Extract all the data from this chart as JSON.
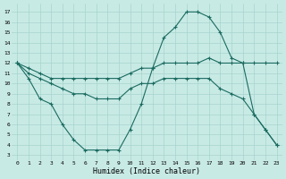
{
  "xlabel": "Humidex (Indice chaleur)",
  "xlim": [
    -0.5,
    23.5
  ],
  "ylim": [
    2.5,
    17.8
  ],
  "yticks": [
    3,
    4,
    5,
    6,
    7,
    8,
    9,
    10,
    11,
    12,
    13,
    14,
    15,
    16,
    17
  ],
  "xticks": [
    0,
    1,
    2,
    3,
    4,
    5,
    6,
    7,
    8,
    9,
    10,
    11,
    12,
    13,
    14,
    15,
    16,
    17,
    18,
    19,
    20,
    21,
    22,
    23
  ],
  "background_color": "#c8eae5",
  "grid_color": "#a8d4ce",
  "line_color": "#1a6b60",
  "line1_x": [
    0,
    1,
    2,
    3,
    4,
    5,
    6,
    7,
    8,
    9,
    10,
    11,
    12,
    13,
    14,
    15,
    16,
    17,
    18,
    19,
    20,
    21,
    22,
    23
  ],
  "line1_y": [
    12,
    11.5,
    11.0,
    10.5,
    10.5,
    10.5,
    10.5,
    10.5,
    10.5,
    10.5,
    11.0,
    11.5,
    11.5,
    12.0,
    12.0,
    12.0,
    12.0,
    12.5,
    12.0,
    12.0,
    12.0,
    12.0,
    12.0,
    12.0
  ],
  "line2_x": [
    0,
    1,
    2,
    3,
    4,
    5,
    6,
    7,
    8,
    9,
    10,
    11,
    12,
    13,
    14,
    15,
    16,
    17,
    18,
    19,
    20,
    21,
    22,
    23
  ],
  "line2_y": [
    12,
    11.0,
    10.5,
    10.0,
    9.5,
    9.0,
    9.0,
    8.5,
    8.5,
    8.5,
    9.5,
    10.0,
    10.0,
    10.5,
    10.5,
    10.5,
    10.5,
    10.5,
    9.5,
    9.0,
    8.5,
    7.0,
    5.5,
    4.0
  ],
  "line3_x": [
    0,
    1,
    2,
    3,
    4,
    5,
    6,
    7,
    8,
    9,
    10,
    11,
    12,
    13,
    14,
    15,
    16,
    17,
    18,
    19,
    20,
    21,
    22,
    23
  ],
  "line3_y": [
    12,
    10.5,
    8.5,
    8.0,
    6.0,
    4.5,
    3.5,
    3.5,
    3.5,
    3.5,
    5.5,
    8.0,
    11.5,
    14.5,
    15.5,
    17.0,
    17.0,
    16.5,
    15.0,
    12.5,
    12.0,
    7.0,
    5.5,
    4.0
  ]
}
